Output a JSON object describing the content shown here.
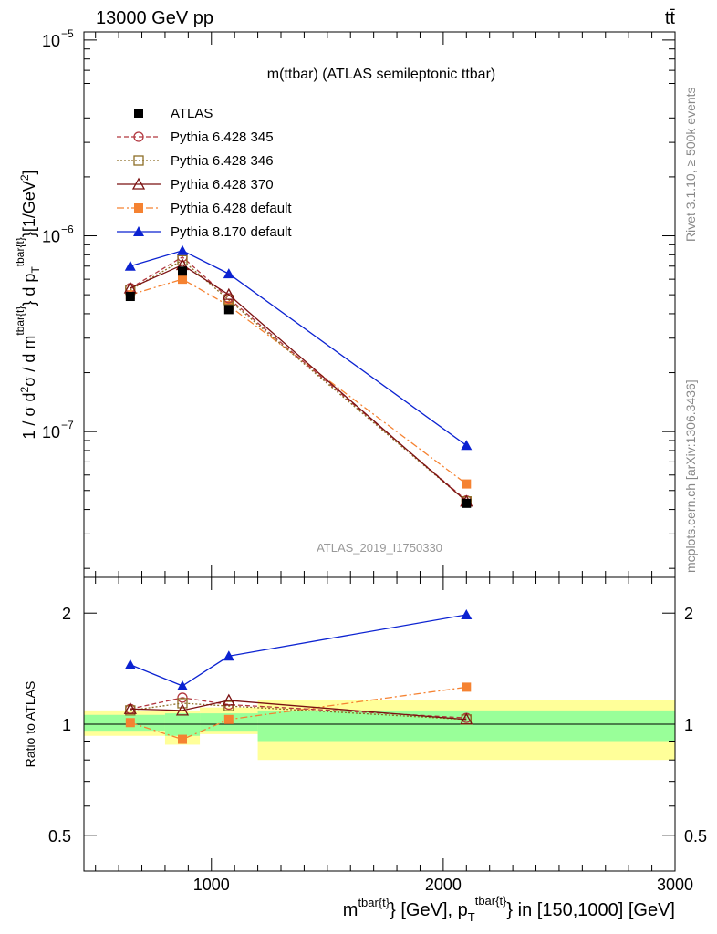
{
  "header": {
    "left": "13000 GeV pp",
    "right": "tt̄"
  },
  "side_labels": {
    "rivet": "Rivet 3.1.10, ≥ 500k events",
    "mcplots": "mcplots.cern.ch [arXiv:1306.3436]"
  },
  "colors": {
    "atlas": "#000000",
    "p345": "#b2373f",
    "p346": "#8d6e27",
    "p370": "#7b1111",
    "p6def": "#f58231",
    "p8def": "#0b22d1",
    "band_inner": "#99ff99",
    "band_outer": "#ffff99"
  },
  "chart_data": [
    {
      "type": "line",
      "title": "m(ttbar) (ATLAS semileptonic ttbar)",
      "ylabel": "1 / σ d²σ / d m^{tbar{t}} d p_T^{tbar{t}}[1/GeV²]",
      "analysis_label": "ATLAS_2019_I1750330",
      "yscale": "log",
      "ylim": [
        1.8e-08,
        1.1e-05
      ],
      "xlim": [
        450,
        3000
      ],
      "yticks": [
        {
          "value": 1e-07,
          "label": "10",
          "exp": "−7"
        },
        {
          "value": 1e-06,
          "label": "10",
          "exp": "−6"
        },
        {
          "value": 1e-05,
          "label": "10",
          "exp": "−5"
        }
      ],
      "legend_placement": "top-left",
      "x": [
        650,
        875,
        1075,
        2100
      ],
      "series": [
        {
          "key": "atlas",
          "name": "ATLAS",
          "marker": "square",
          "dash": "",
          "y": [
            4.9e-07,
            6.6e-07,
            4.2e-07,
            4.3e-08
          ]
        },
        {
          "key": "p345",
          "name": "Pythia 6.428 345",
          "marker": "open-circle",
          "dash": "5,3",
          "y": [
            5.4e-07,
            7.8e-07,
            4.8e-07,
            4.45e-08
          ]
        },
        {
          "key": "p346",
          "name": "Pythia 6.428 346",
          "marker": "open-square",
          "dash": "2,2",
          "y": [
            5.3e-07,
            7.5e-07,
            4.7e-07,
            4.4e-08
          ]
        },
        {
          "key": "p370",
          "name": "Pythia 6.428 370",
          "marker": "open-triangle",
          "dash": "",
          "y": [
            5.4e-07,
            7.1e-07,
            5e-07,
            4.4e-08
          ]
        },
        {
          "key": "p6def",
          "name": "Pythia 6.428 default",
          "marker": "square",
          "dash": "8,3,2,3",
          "y": [
            5e-07,
            6e-07,
            4.4e-07,
            5.4e-08
          ]
        },
        {
          "key": "p8def",
          "name": "Pythia 8.170 default",
          "marker": "triangle",
          "dash": "",
          "y": [
            7e-07,
            8.4e-07,
            6.4e-07,
            8.5e-08
          ]
        }
      ]
    },
    {
      "type": "line",
      "ylabel": "Ratio to ATLAS",
      "yscale": "log",
      "ylim": [
        0.4,
        2.5
      ],
      "xlim": [
        450,
        3000
      ],
      "yticks": [
        {
          "value": 0.5,
          "label": "0.5"
        },
        {
          "value": 1,
          "label": "1"
        },
        {
          "value": 2,
          "label": "2"
        }
      ],
      "xticks": [
        {
          "value": 1000,
          "label": "1000"
        },
        {
          "value": 2000,
          "label": "2000"
        },
        {
          "value": 3000,
          "label": "3000"
        }
      ],
      "xlabel": "m^{tbar{t}} [GeV], p_T^{tbar{t}} in [150,1000] [GeV]",
      "bands": [
        {
          "x0": 450,
          "x1": 800,
          "inner": [
            0.96,
            1.06
          ],
          "outer": [
            0.93,
            1.09
          ]
        },
        {
          "x0": 800,
          "x1": 950,
          "inner": [
            0.93,
            1.07
          ],
          "outer": [
            0.88,
            1.09
          ]
        },
        {
          "x0": 950,
          "x1": 1200,
          "inner": [
            0.96,
            1.07
          ],
          "outer": [
            0.94,
            1.11
          ]
        },
        {
          "x0": 1200,
          "x1": 3000,
          "inner": [
            0.9,
            1.09
          ],
          "outer": [
            0.8,
            1.16
          ]
        }
      ],
      "x": [
        650,
        875,
        1075,
        2100
      ],
      "series": [
        {
          "key": "p345",
          "y": [
            1.1,
            1.18,
            1.13,
            1.04
          ]
        },
        {
          "key": "p346",
          "y": [
            1.09,
            1.14,
            1.12,
            1.03
          ]
        },
        {
          "key": "p370",
          "y": [
            1.1,
            1.09,
            1.16,
            1.03
          ]
        },
        {
          "key": "p6def",
          "y": [
            1.01,
            0.91,
            1.03,
            1.26
          ]
        },
        {
          "key": "p8def",
          "y": [
            1.45,
            1.27,
            1.53,
            1.98
          ]
        }
      ]
    }
  ]
}
